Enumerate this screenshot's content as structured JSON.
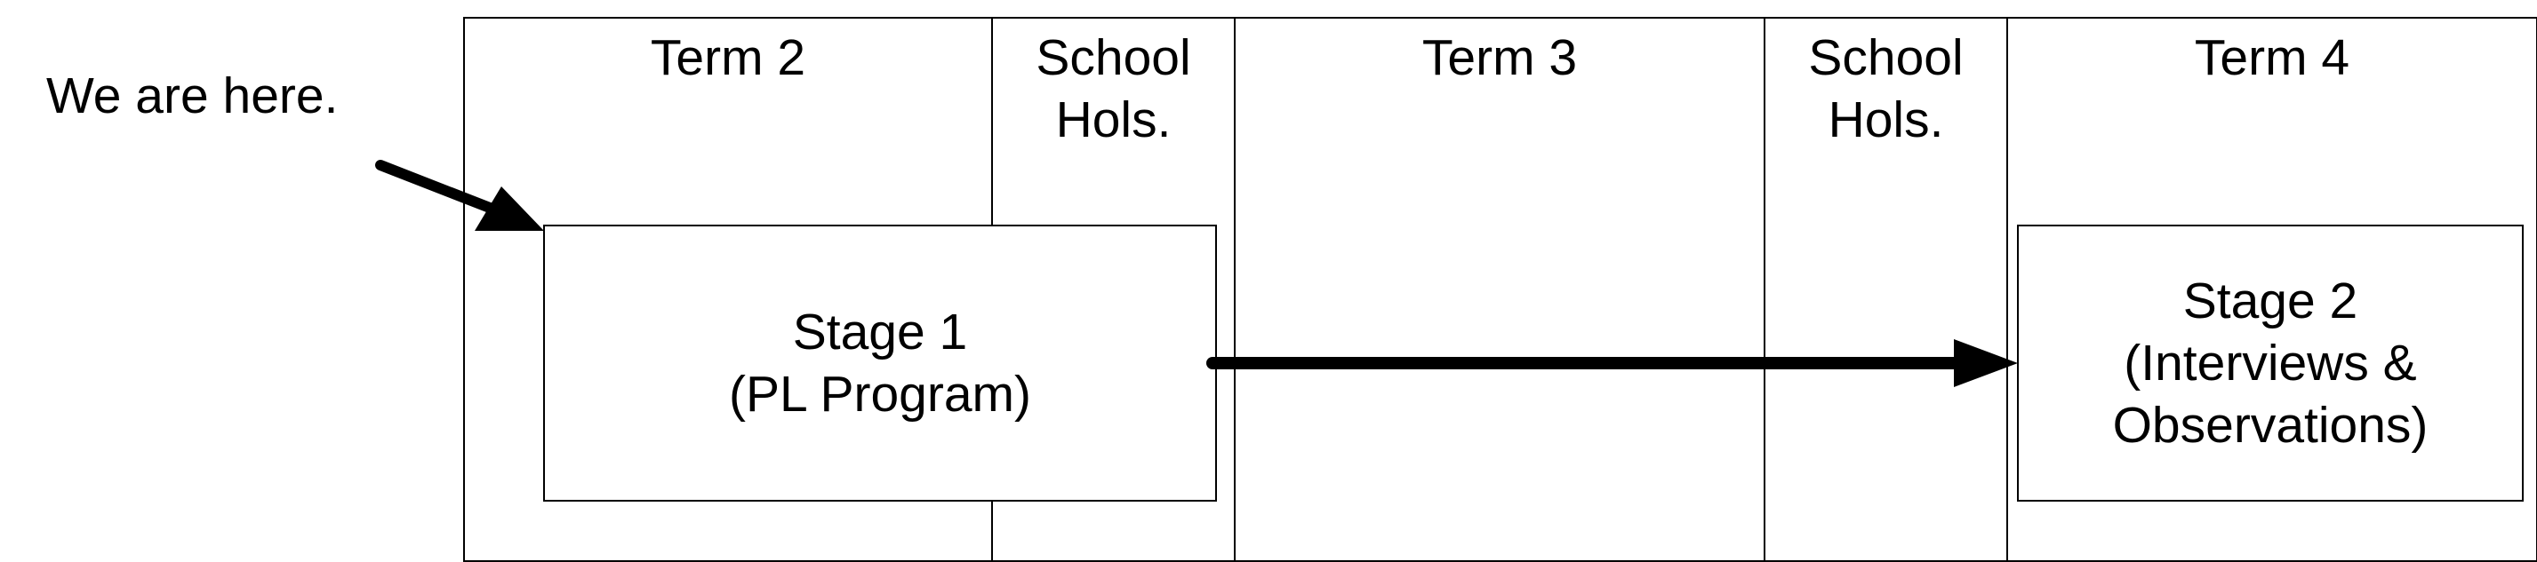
{
  "annotation": {
    "text": "We are here."
  },
  "timeline": {
    "columns": [
      {
        "id": "term2",
        "label": "Term 2"
      },
      {
        "id": "hols1",
        "label": "School\nHols."
      },
      {
        "id": "term3",
        "label": "Term 3"
      },
      {
        "id": "hols2",
        "label": "School\nHols."
      },
      {
        "id": "term4",
        "label": "Term 4"
      }
    ]
  },
  "stages": {
    "stage1": {
      "label": "Stage 1\n(PL Program)"
    },
    "stage2": {
      "label": "Stage 2\n(Interviews &\nObservations)"
    }
  },
  "colors": {
    "stroke": "#000000",
    "background": "#ffffff"
  }
}
